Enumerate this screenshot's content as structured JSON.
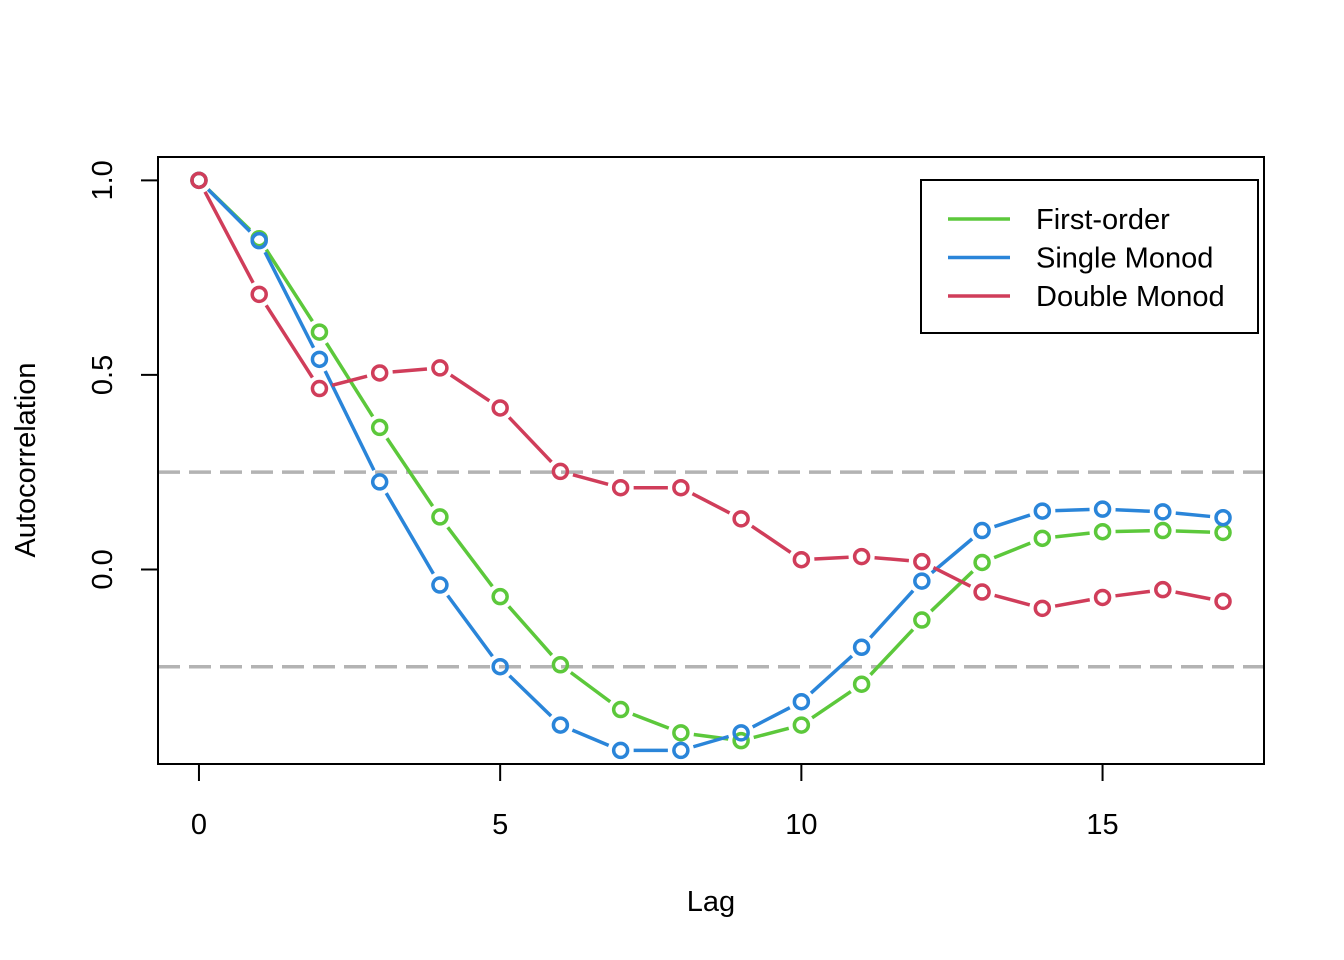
{
  "chart_data": {
    "type": "line",
    "title": "",
    "xlabel": "Lag",
    "ylabel": "Autocorrelation",
    "xlim": [
      -0.68,
      17.68
    ],
    "ylim": [
      -0.5,
      1.06
    ],
    "x_ticks": [
      0,
      5,
      10,
      15
    ],
    "x_tick_labels": [
      "0",
      "5",
      "10",
      "15"
    ],
    "y_ticks": [
      0,
      0.5,
      1
    ],
    "y_tick_labels": [
      "0.0",
      "0.5",
      "1.0"
    ],
    "grid": false,
    "legend_position": "top-right",
    "confidence_bounds": [
      0.25,
      -0.25
    ],
    "confidence_color": "#b3b3b3",
    "x": [
      0,
      1,
      2,
      3,
      4,
      5,
      6,
      7,
      8,
      9,
      10,
      11,
      12,
      13,
      14,
      15,
      16,
      17
    ],
    "series": [
      {
        "name": "First-order",
        "color": "#5cc83b",
        "values": [
          1.0,
          0.85,
          0.61,
          0.365,
          0.135,
          -0.07,
          -0.245,
          -0.36,
          -0.42,
          -0.44,
          -0.4,
          -0.295,
          -0.13,
          0.018,
          0.08,
          0.097,
          0.1,
          0.095
        ]
      },
      {
        "name": "Single Monod",
        "color": "#2a85d9",
        "values": [
          1.0,
          0.845,
          0.54,
          0.225,
          -0.04,
          -0.25,
          -0.4,
          -0.465,
          -0.465,
          -0.42,
          -0.34,
          -0.2,
          -0.03,
          0.1,
          0.15,
          0.155,
          0.148,
          0.133
        ]
      },
      {
        "name": "Double Monod",
        "color": "#d03d5a",
        "values": [
          1.0,
          0.707,
          0.465,
          0.505,
          0.518,
          0.415,
          0.252,
          0.21,
          0.21,
          0.13,
          0.025,
          0.033,
          0.02,
          -0.058,
          -0.1,
          -0.072,
          -0.052,
          -0.082
        ]
      }
    ]
  }
}
